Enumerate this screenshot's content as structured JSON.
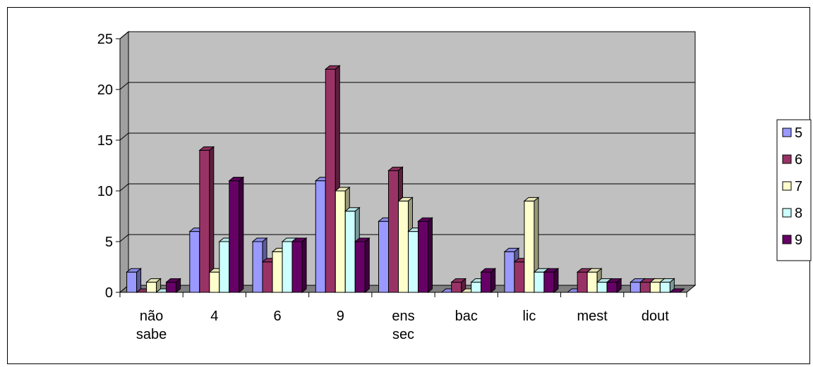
{
  "chart_data": {
    "type": "bar",
    "categories": [
      [
        "não",
        "sabe"
      ],
      [
        "4"
      ],
      [
        "6"
      ],
      [
        "9"
      ],
      [
        "ens",
        "sec"
      ],
      [
        "bac"
      ],
      [
        "lic"
      ],
      [
        "mest"
      ],
      [
        "dout"
      ]
    ],
    "series": [
      {
        "name": "5",
        "color": "#9999FF",
        "values": [
          2,
          6,
          5,
          11,
          7,
          0,
          4,
          0,
          1
        ]
      },
      {
        "name": "6",
        "color": "#993366",
        "values": [
          0,
          14,
          3,
          22,
          12,
          1,
          3,
          2,
          1
        ]
      },
      {
        "name": "7",
        "color": "#FFFFCC",
        "values": [
          1,
          2,
          4,
          10,
          9,
          0,
          9,
          2,
          1
        ]
      },
      {
        "name": "8",
        "color": "#CCFFFF",
        "values": [
          0,
          5,
          5,
          8,
          6,
          1,
          2,
          1,
          1
        ]
      },
      {
        "name": "9",
        "color": "#660066",
        "values": [
          1,
          11,
          5,
          5,
          7,
          2,
          2,
          1,
          0
        ]
      }
    ],
    "ylim": [
      0,
      25
    ],
    "yticks": [
      "0",
      "5",
      "10",
      "15",
      "20",
      "25"
    ],
    "grid": true,
    "legend_position": "right",
    "wall_color": "#C0C0C0",
    "floor_color": "#808080"
  }
}
